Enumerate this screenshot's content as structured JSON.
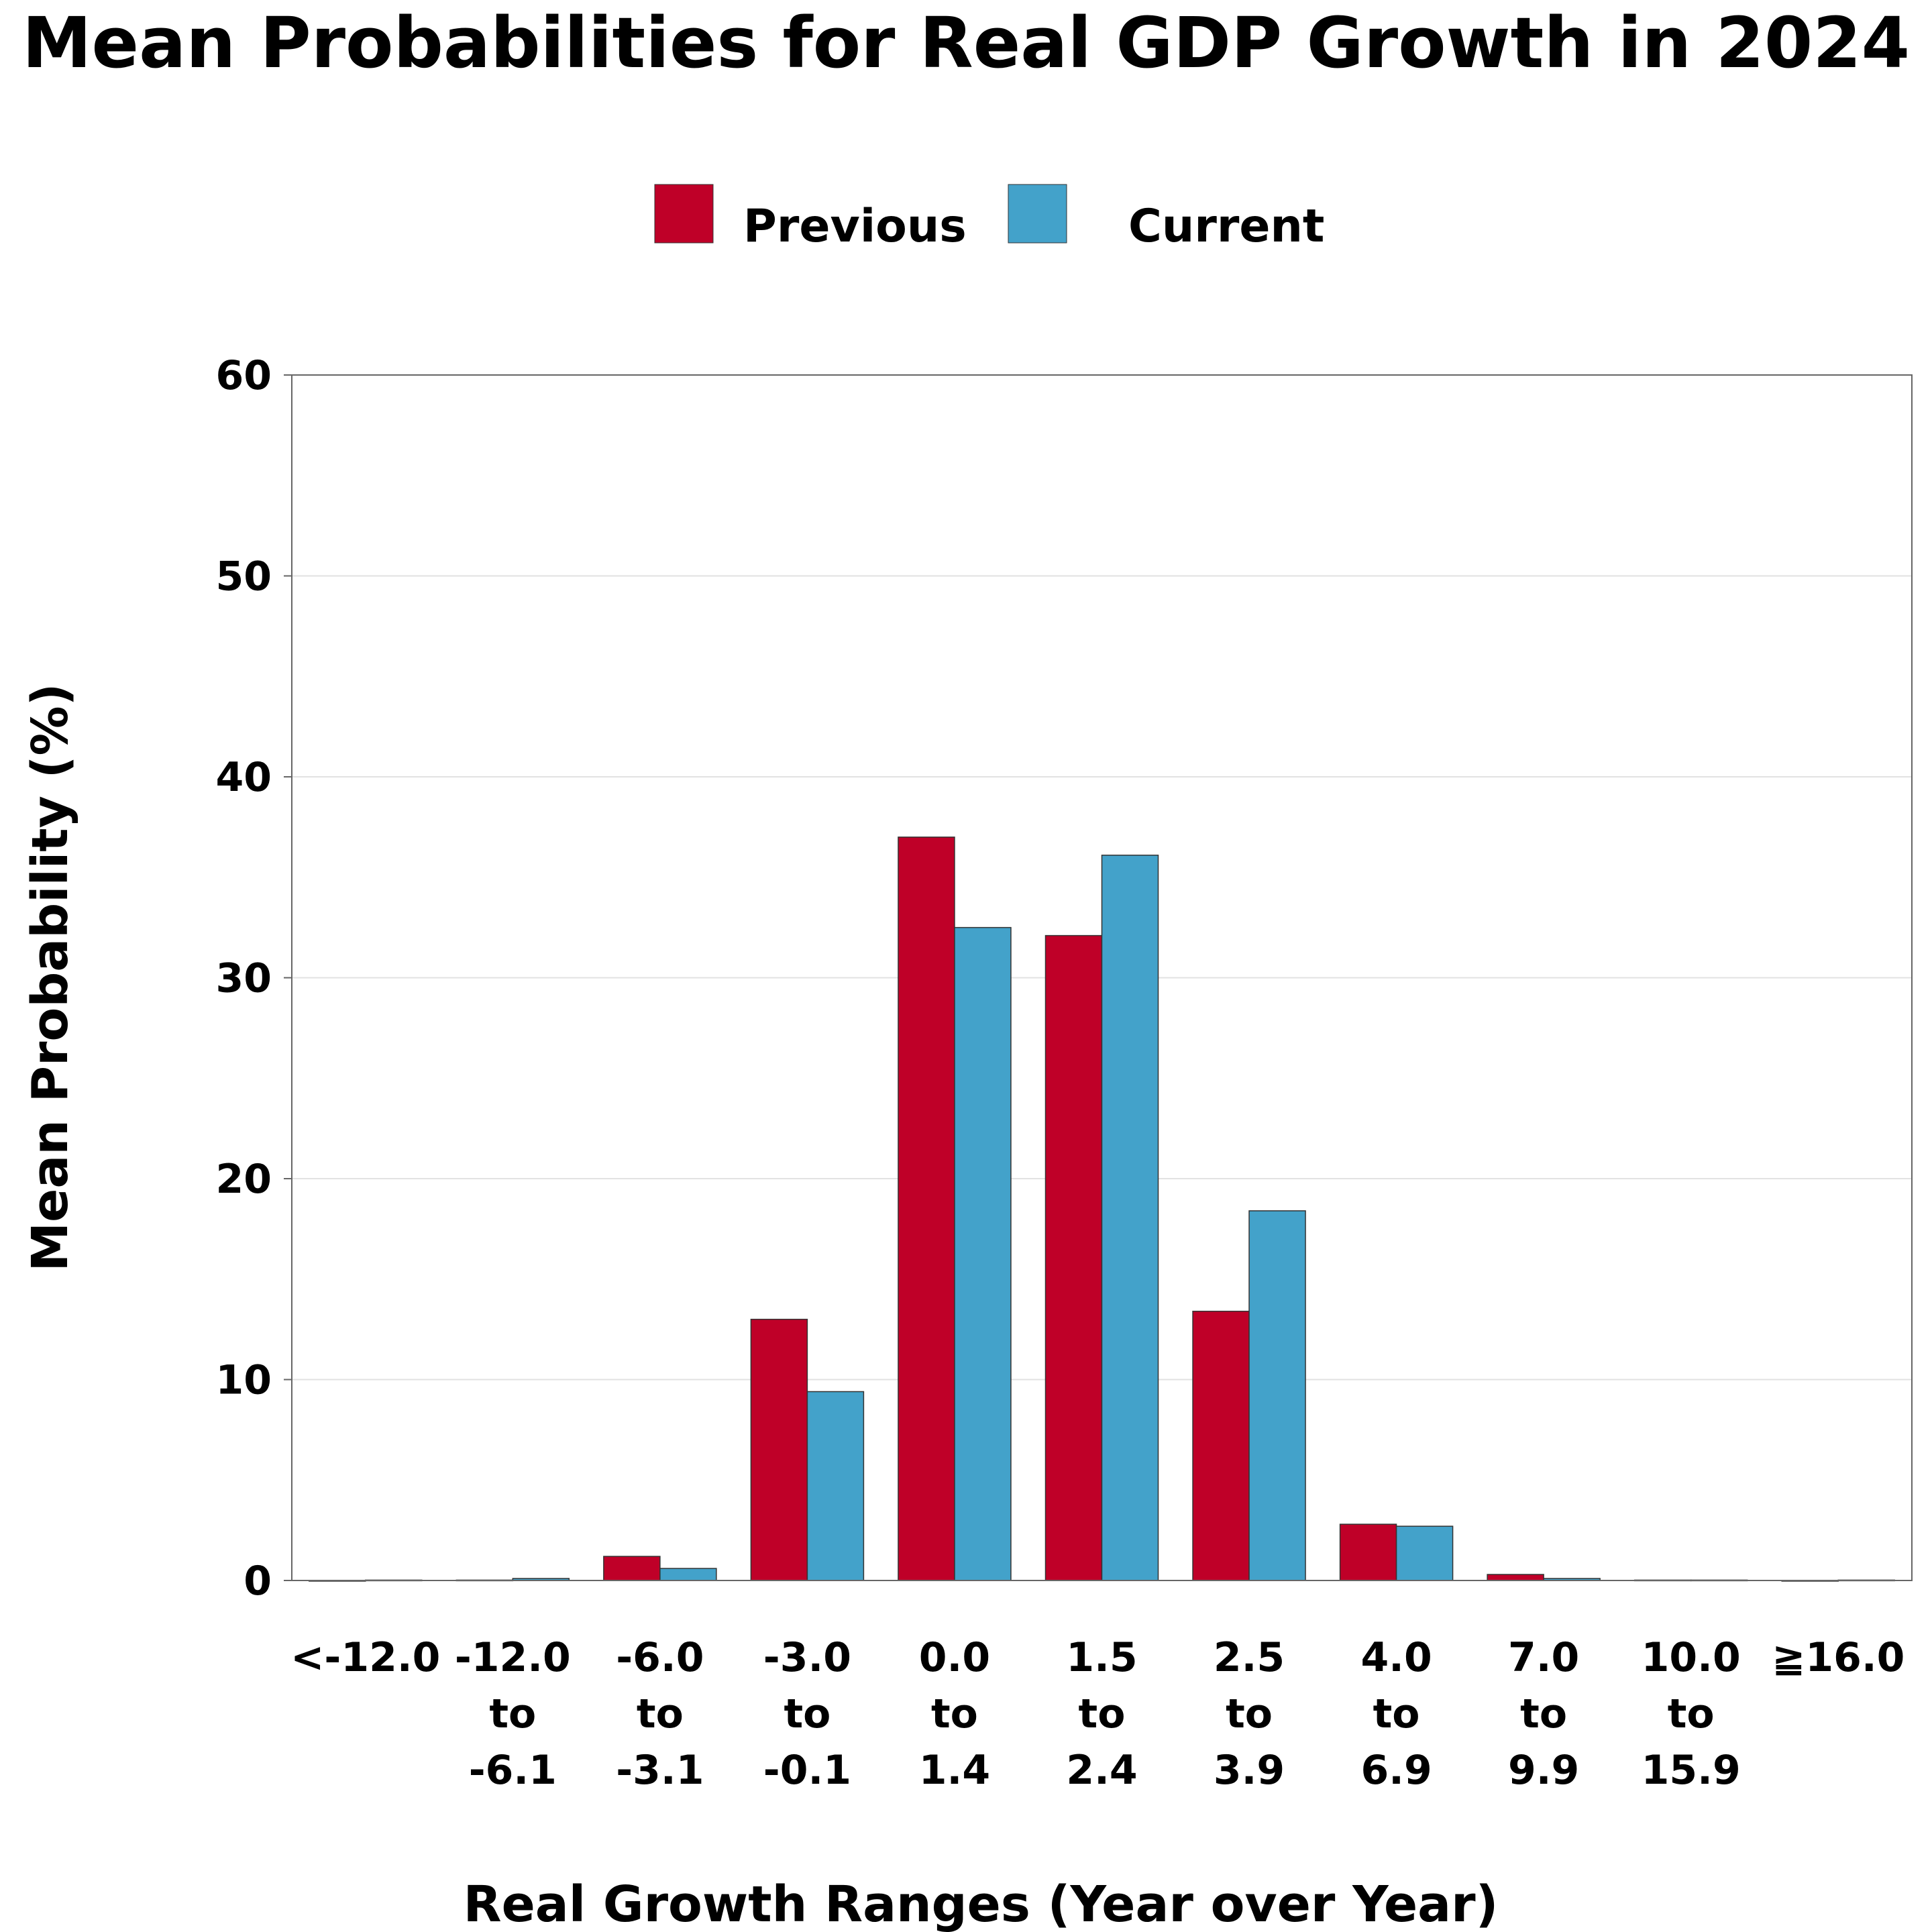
{
  "chart_data": {
    "type": "bar",
    "title": "Mean Probabilities for Real GDP Growth in 2024",
    "xlabel": "Real Growth Ranges (Year over Year)",
    "ylabel": "Mean Probability (%)",
    "ylim": [
      0,
      60
    ],
    "yticks": [
      "0",
      "10",
      "20",
      "30",
      "40",
      "50",
      "60"
    ],
    "grid": "horizontal",
    "legend_position": "top-center",
    "categories": [
      [
        "<-12.0"
      ],
      [
        "-12.0",
        "to",
        "-6.1"
      ],
      [
        "-6.0",
        "to",
        "-3.1"
      ],
      [
        "-3.0",
        "to",
        "-0.1"
      ],
      [
        "0.0",
        "to",
        "1.4"
      ],
      [
        "1.5",
        "to",
        "2.4"
      ],
      [
        "2.5",
        "to",
        "3.9"
      ],
      [
        "4.0",
        "to",
        "6.9"
      ],
      [
        "7.0",
        "to",
        "9.9"
      ],
      [
        "10.0",
        "to",
        "15.9"
      ],
      [
        "≧16.0"
      ]
    ],
    "series": [
      {
        "name": "Previous",
        "color": "#bf0028",
        "values": [
          0.0,
          0.02,
          1.2,
          13.0,
          37.0,
          32.1,
          13.4,
          2.8,
          0.3,
          0.02,
          0.0
        ]
      },
      {
        "name": "Current",
        "color": "#43a2ca",
        "values": [
          0.02,
          0.1,
          0.6,
          9.4,
          32.5,
          36.1,
          18.4,
          2.7,
          0.1,
          0.02,
          0.02
        ]
      }
    ]
  }
}
